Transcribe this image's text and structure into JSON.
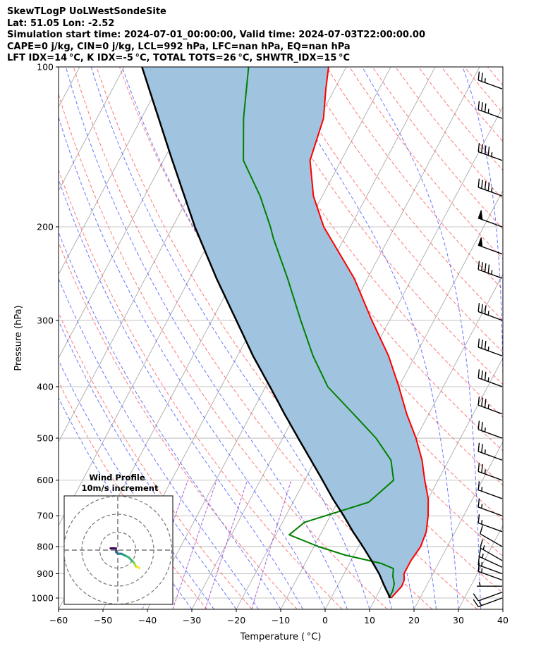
{
  "header": {
    "line1": "SkewTLogP UoLWestSondeSite",
    "line2": "Lat: 51.05   Lon: -2.52",
    "line3": "Simulation start time: 2024-07-01_00:00:00, Valid time: 2024-07-03T22:00:00.00",
    "line4": "CAPE=0 j/kg, CIN=0 j/kg, LCL=992 hPa, LFC=nan hPa, EQ=nan hPa",
    "line5": "LFT IDX=14 °C, K IDX=-5 °C, TOTAL TOTS=26 °C, SHWTR_IDX=15 °C"
  },
  "colors": {
    "temperature": "#ff0000",
    "dewpoint": "#008000",
    "parcel": "#000000",
    "shade": "#a0c4df",
    "dry_adiabat": "#ff5555",
    "moist_adiabat": "#4455ff",
    "mixing_ratio": "#9933cc",
    "isotherm": "#a0a0a0"
  },
  "chart_data": [
    {
      "type": "line",
      "subtype": "skew-t log-p",
      "xlabel": "Temperature ( °C)",
      "ylabel": "Pressure (hPa)",
      "xlim": [
        -60,
        40
      ],
      "ylim": [
        1050,
        100
      ],
      "y_scale": "log",
      "x_ticks": [
        "−60",
        "−50",
        "−40",
        "−30",
        "−20",
        "−10",
        "0",
        "10",
        "20",
        "30",
        "40"
      ],
      "y_ticks": [
        "100",
        "200",
        "300",
        "400",
        "500",
        "600",
        "700",
        "800",
        "900",
        "1000"
      ],
      "grid": true,
      "series": [
        {
          "role": "temperature",
          "points": [
            [
              1000,
              13.5
            ],
            [
              975,
              14
            ],
            [
              950,
              14.5
            ],
            [
              925,
              14.3
            ],
            [
              900,
              13.5
            ],
            [
              850,
              13.5
            ],
            [
              800,
              14
            ],
            [
              750,
              13.5
            ],
            [
              700,
              12
            ],
            [
              650,
              10
            ],
            [
              600,
              7
            ],
            [
              550,
              4
            ],
            [
              500,
              0
            ],
            [
              450,
              -5
            ],
            [
              400,
              -10
            ],
            [
              350,
              -16
            ],
            [
              300,
              -24
            ],
            [
              250,
              -33
            ],
            [
              200,
              -46
            ],
            [
              175,
              -52
            ],
            [
              150,
              -57
            ],
            [
              125,
              -59
            ],
            [
              110,
              -62
            ],
            [
              100,
              -64
            ]
          ]
        },
        {
          "role": "dewpoint",
          "points": [
            [
              1000,
              13
            ],
            [
              970,
              13
            ],
            [
              940,
              12.5
            ],
            [
              910,
              11.3
            ],
            [
              880,
              10.5
            ],
            [
              860,
              7
            ],
            [
              830,
              -2
            ],
            [
              800,
              -9
            ],
            [
              760,
              -17
            ],
            [
              720,
              -15
            ],
            [
              660,
              -3
            ],
            [
              600,
              0
            ],
            [
              550,
              -3
            ],
            [
              500,
              -9
            ],
            [
              450,
              -17
            ],
            [
              400,
              -26
            ],
            [
              350,
              -33
            ],
            [
              300,
              -40
            ],
            [
              250,
              -48
            ],
            [
              210,
              -56
            ],
            [
              200,
              -58
            ],
            [
              175,
              -64
            ],
            [
              150,
              -72
            ],
            [
              125,
              -77
            ],
            [
              100,
              -82
            ]
          ]
        },
        {
          "role": "parcel",
          "points": [
            [
              1000,
              13.3
            ],
            [
              950,
              10.6
            ],
            [
              900,
              7.9
            ],
            [
              850,
              4.6
            ],
            [
              800,
              1
            ],
            [
              750,
              -3
            ],
            [
              700,
              -7
            ],
            [
              650,
              -11.5
            ],
            [
              600,
              -16
            ],
            [
              550,
              -21
            ],
            [
              500,
              -26.5
            ],
            [
              450,
              -32.5
            ],
            [
              400,
              -39
            ],
            [
              350,
              -46.5
            ],
            [
              300,
              -54.5
            ],
            [
              250,
              -64
            ],
            [
              200,
              -75
            ],
            [
              150,
              -88
            ],
            [
              100,
              -106
            ]
          ]
        }
      ]
    },
    {
      "type": "line",
      "subtype": "wind barbs",
      "points": [
        {
          "p": 1000,
          "speed_kt": 15,
          "dir_deg": 250
        },
        {
          "p": 975,
          "speed_kt": 10,
          "dir_deg": 250
        },
        {
          "p": 950,
          "speed_kt": 5,
          "dir_deg": 270
        },
        {
          "p": 925,
          "speed_kt": 15,
          "dir_deg": 290
        },
        {
          "p": 900,
          "speed_kt": 15,
          "dir_deg": 290
        },
        {
          "p": 875,
          "speed_kt": 15,
          "dir_deg": 295
        },
        {
          "p": 850,
          "speed_kt": 15,
          "dir_deg": 300
        },
        {
          "p": 800,
          "speed_kt": 10,
          "dir_deg": 300
        },
        {
          "p": 750,
          "speed_kt": 15,
          "dir_deg": 290
        },
        {
          "p": 700,
          "speed_kt": 15,
          "dir_deg": 290
        },
        {
          "p": 650,
          "speed_kt": 15,
          "dir_deg": 290
        },
        {
          "p": 600,
          "speed_kt": 25,
          "dir_deg": 290
        },
        {
          "p": 550,
          "speed_kt": 25,
          "dir_deg": 290
        },
        {
          "p": 500,
          "speed_kt": 25,
          "dir_deg": 290
        },
        {
          "p": 450,
          "speed_kt": 35,
          "dir_deg": 290
        },
        {
          "p": 400,
          "speed_kt": 35,
          "dir_deg": 290
        },
        {
          "p": 350,
          "speed_kt": 35,
          "dir_deg": 290
        },
        {
          "p": 300,
          "speed_kt": 35,
          "dir_deg": 290
        },
        {
          "p": 250,
          "speed_kt": 45,
          "dir_deg": 290
        },
        {
          "p": 225,
          "speed_kt": 50,
          "dir_deg": 290
        },
        {
          "p": 200,
          "speed_kt": 50,
          "dir_deg": 290
        },
        {
          "p": 175,
          "speed_kt": 45,
          "dir_deg": 290
        },
        {
          "p": 150,
          "speed_kt": 45,
          "dir_deg": 290
        },
        {
          "p": 125,
          "speed_kt": 35,
          "dir_deg": 290
        },
        {
          "p": 110,
          "speed_kt": 25,
          "dir_deg": 290
        }
      ]
    },
    {
      "type": "line",
      "subtype": "hodograph",
      "title": "Wind Profile",
      "subtitle": "10m/s increment",
      "rings_ms": [
        10,
        20,
        30
      ],
      "points": [
        [
          12,
          -10
        ],
        [
          11,
          -9.5
        ],
        [
          10,
          -9
        ],
        [
          9,
          -7
        ],
        [
          8,
          -6
        ],
        [
          6,
          -4
        ],
        [
          4,
          -3
        ],
        [
          2,
          -2
        ],
        [
          0,
          -2
        ],
        [
          -1,
          -1
        ],
        [
          -1,
          0
        ],
        [
          -1,
          1
        ],
        [
          -2,
          1
        ],
        [
          -4,
          1
        ]
      ]
    }
  ]
}
